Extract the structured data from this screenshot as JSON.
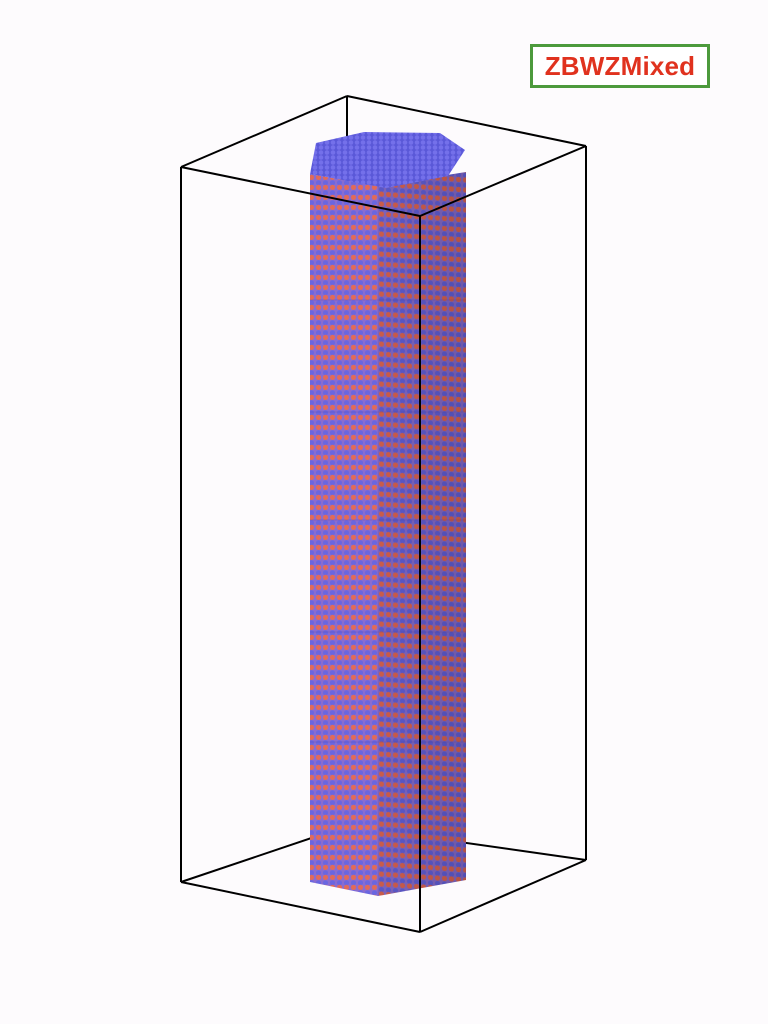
{
  "structure_label": {
    "text": "ZBWZMixed",
    "text_color": "#e0321e",
    "border_color": "#4c9a3c"
  },
  "colors": {
    "background": "#fdfbfd",
    "box_edge": "#000000",
    "atom_blue": "#6a66e0",
    "atom_red": "#e06a5a"
  },
  "icons": {
    "nanowire": "hexagonal-nanowire-icon",
    "bounding_box": "simulation-box-icon"
  }
}
